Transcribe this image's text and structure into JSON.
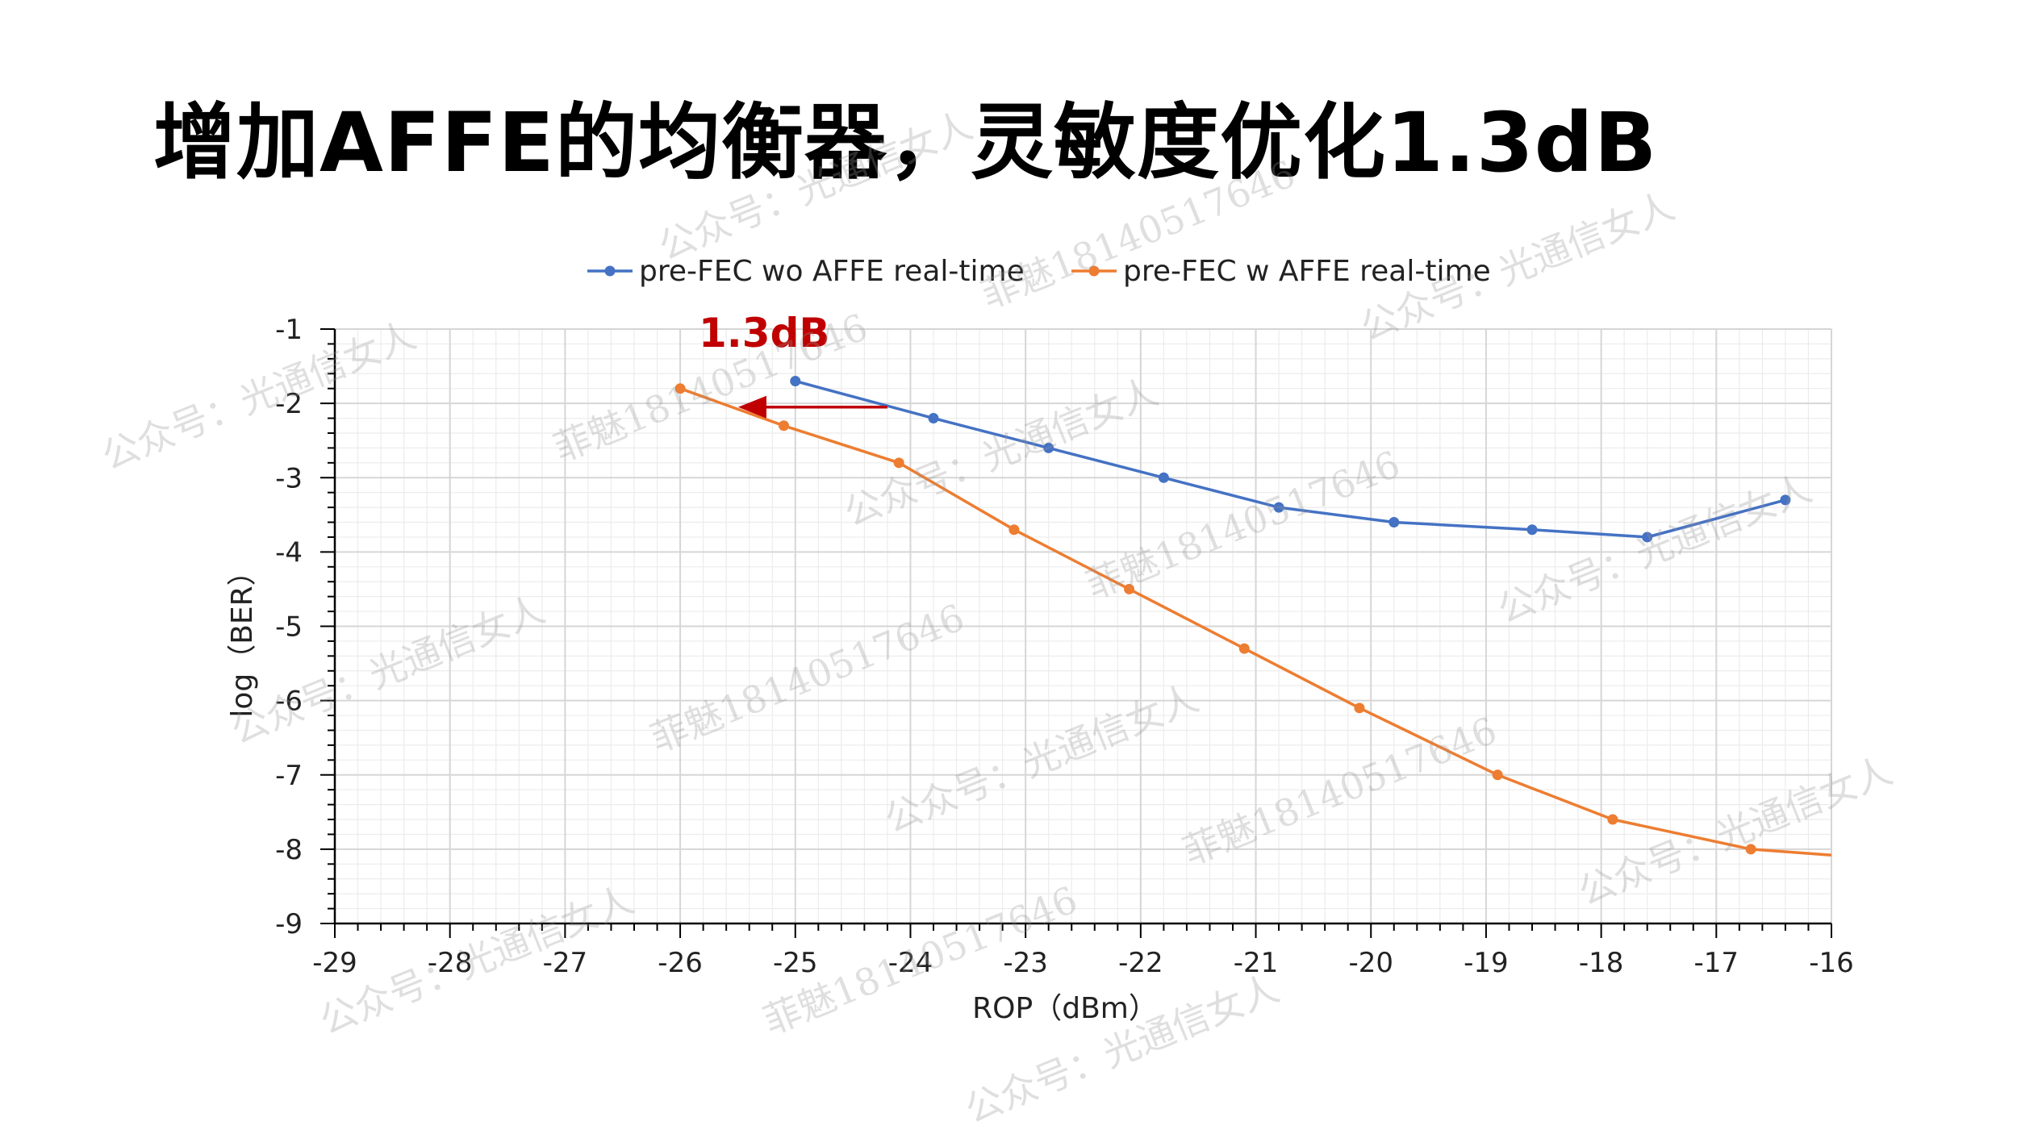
{
  "title": "增加AFFE的均衡器，灵敏度优化1.3dB",
  "watermarks": [
    "公众号：光通信女人",
    "菲魅18140517646"
  ],
  "chart_data": {
    "type": "line",
    "xlabel": "ROP（dBm）",
    "ylabel": "log（BER）",
    "xlim": [
      -29,
      -16
    ],
    "ylim": [
      -9,
      -1
    ],
    "xticks": [
      -29,
      -28,
      -27,
      -26,
      -25,
      -24,
      -23,
      -22,
      -21,
      -20,
      -19,
      -18,
      -17,
      -16
    ],
    "yticks": [
      -9,
      -8,
      -7,
      -6,
      -5,
      -4,
      -3,
      -2,
      -1
    ],
    "grid": true,
    "legend_position": "top",
    "series": [
      {
        "name": "pre-FEC wo AFFE real-time",
        "color": "#4472C4",
        "x": [
          -25.0,
          -23.8,
          -22.8,
          -21.8,
          -20.8,
          -19.8,
          -18.6,
          -17.6,
          -16.4
        ],
        "y": [
          -1.7,
          -2.2,
          -2.6,
          -3.0,
          -3.4,
          -3.6,
          -3.7,
          -3.8,
          -3.3
        ],
        "markers": [
          true,
          true,
          true,
          true,
          true,
          true,
          true,
          true,
          true
        ]
      },
      {
        "name": "pre-FEC w AFFE real-time",
        "color": "#ED7D31",
        "x": [
          -26.0,
          -25.1,
          -24.1,
          -23.1,
          -22.1,
          -21.1,
          -20.1,
          -18.9,
          -17.9,
          -16.7,
          -16.0
        ],
        "y": [
          -1.8,
          -2.3,
          -2.8,
          -3.7,
          -4.5,
          -5.3,
          -6.1,
          -7.0,
          -7.6,
          -8.0,
          -8.08
        ],
        "markers": [
          true,
          true,
          true,
          true,
          true,
          true,
          true,
          true,
          true,
          true,
          false
        ]
      }
    ],
    "annotation": {
      "text": "1.3dB",
      "color": "#C00000",
      "arrow_from": [
        -24.2,
        -2.05
      ],
      "arrow_to": [
        -25.5,
        -2.05
      ]
    }
  }
}
